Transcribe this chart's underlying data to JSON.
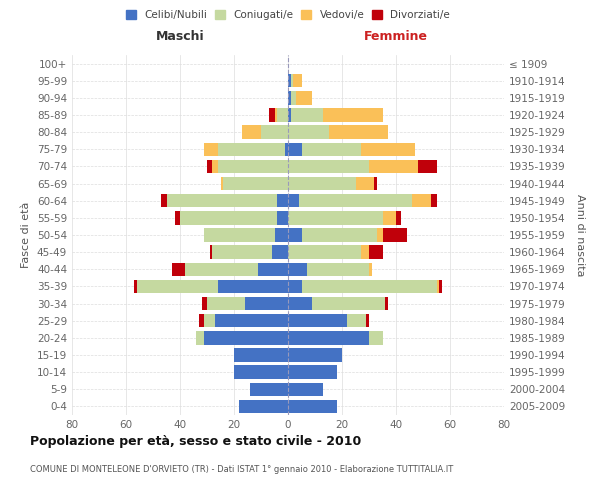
{
  "age_groups": [
    "0-4",
    "5-9",
    "10-14",
    "15-19",
    "20-24",
    "25-29",
    "30-34",
    "35-39",
    "40-44",
    "45-49",
    "50-54",
    "55-59",
    "60-64",
    "65-69",
    "70-74",
    "75-79",
    "80-84",
    "85-89",
    "90-94",
    "95-99",
    "100+"
  ],
  "birth_years": [
    "2005-2009",
    "2000-2004",
    "1995-1999",
    "1990-1994",
    "1985-1989",
    "1980-1984",
    "1975-1979",
    "1970-1974",
    "1965-1969",
    "1960-1964",
    "1955-1959",
    "1950-1954",
    "1945-1949",
    "1940-1944",
    "1935-1939",
    "1930-1934",
    "1925-1929",
    "1920-1924",
    "1915-1919",
    "1910-1914",
    "≤ 1909"
  ],
  "male": {
    "celibi": [
      18,
      14,
      20,
      20,
      31,
      27,
      16,
      26,
      11,
      6,
      5,
      4,
      4,
      0,
      0,
      1,
      0,
      0,
      0,
      0,
      0
    ],
    "coniugati": [
      0,
      0,
      0,
      0,
      3,
      4,
      14,
      30,
      27,
      22,
      26,
      36,
      41,
      24,
      26,
      25,
      10,
      4,
      0,
      0,
      0
    ],
    "vedovi": [
      0,
      0,
      0,
      0,
      0,
      0,
      0,
      0,
      0,
      0,
      0,
      0,
      0,
      1,
      2,
      5,
      7,
      1,
      0,
      0,
      0
    ],
    "divorziati": [
      0,
      0,
      0,
      0,
      0,
      2,
      2,
      1,
      5,
      1,
      0,
      2,
      2,
      0,
      2,
      0,
      0,
      2,
      0,
      0,
      0
    ]
  },
  "female": {
    "nubili": [
      18,
      13,
      18,
      20,
      30,
      22,
      9,
      5,
      7,
      0,
      5,
      0,
      4,
      0,
      0,
      5,
      0,
      1,
      1,
      1,
      0
    ],
    "coniugate": [
      0,
      0,
      0,
      0,
      5,
      7,
      27,
      50,
      23,
      27,
      28,
      35,
      42,
      25,
      30,
      22,
      15,
      12,
      2,
      1,
      0
    ],
    "vedove": [
      0,
      0,
      0,
      0,
      0,
      0,
      0,
      1,
      1,
      3,
      2,
      5,
      7,
      7,
      18,
      20,
      22,
      22,
      6,
      3,
      0
    ],
    "divorziate": [
      0,
      0,
      0,
      0,
      0,
      1,
      1,
      1,
      0,
      5,
      9,
      2,
      2,
      1,
      7,
      0,
      0,
      0,
      0,
      0,
      0
    ]
  },
  "color_celibi": "#4472c4",
  "color_coniugati": "#c5d9a0",
  "color_vedovi": "#fac058",
  "color_divorziati": "#c0000a",
  "xlim": 80,
  "title": "Popolazione per età, sesso e stato civile - 2010",
  "subtitle": "COMUNE DI MONTELEONE D'ORVIETO (TR) - Dati ISTAT 1° gennaio 2010 - Elaborazione TUTTITALIA.IT",
  "xlabel_left": "Maschi",
  "xlabel_right": "Femmine",
  "ylabel_left": "Fasce di età",
  "ylabel_right": "Anni di nascita"
}
